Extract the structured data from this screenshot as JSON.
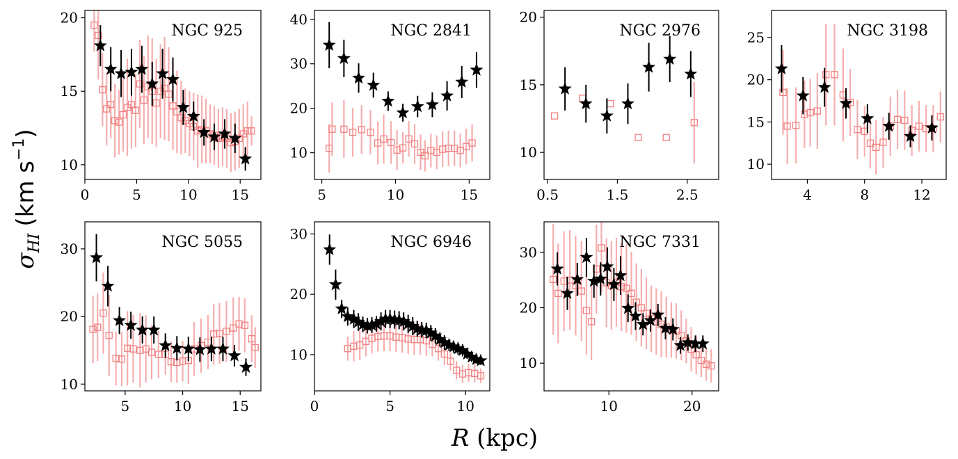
{
  "xlabel_var": "R",
  "xlabel_unit": " (kpc)",
  "ylabel_sym": "σ",
  "ylabel_sub": "HI",
  "ylabel_unit": "(km s",
  "ylabel_exp": "−1",
  "ylabel_close": ")",
  "colors": {
    "star": "#000000",
    "square": "#f08080",
    "square_err": "#f4a0a0"
  },
  "chart_data": [
    {
      "type": "scatter",
      "title": "NGC 925",
      "xlim": [
        0,
        17.0
      ],
      "ylim": [
        9,
        20.5
      ],
      "xticks": [
        0,
        5,
        10,
        15
      ],
      "yticks": [
        10,
        15,
        20
      ],
      "series": [
        {
          "name": "stars",
          "marker": "star",
          "x": [
            1.5,
            2.5,
            3.5,
            4.5,
            5.5,
            6.5,
            7.5,
            8.5,
            9.5,
            10.5,
            11.5,
            12.5,
            13.5,
            14.5,
            15.5
          ],
          "y": [
            18.1,
            16.5,
            16.2,
            16.3,
            16.5,
            15.5,
            16.2,
            15.8,
            13.9,
            13.3,
            12.2,
            11.9,
            12.1,
            11.8,
            10.4
          ],
          "err": [
            1.4,
            1.5,
            1.6,
            1.6,
            1.6,
            1.5,
            1.7,
            1.5,
            1.2,
            1.0,
            0.9,
            0.9,
            1.0,
            1.0,
            0.8
          ]
        },
        {
          "name": "squares",
          "marker": "square",
          "x": [
            0.9,
            1.3,
            1.7,
            2.1,
            2.5,
            2.9,
            3.3,
            3.7,
            4.1,
            4.5,
            4.9,
            5.3,
            5.7,
            6.1,
            6.5,
            6.9,
            7.3,
            7.7,
            8.1,
            8.5,
            8.9,
            9.3,
            9.7,
            10.1,
            10.5,
            10.9,
            11.3,
            11.7,
            12.1,
            12.5,
            12.9,
            13.3,
            13.7,
            14.1,
            14.5,
            14.9,
            15.3,
            15.7,
            16.1
          ],
          "y": [
            19.5,
            18.8,
            15.1,
            13.8,
            14.1,
            13.0,
            12.9,
            13.4,
            13.9,
            14.1,
            13.7,
            15.5,
            14.4,
            15.3,
            15.0,
            14.2,
            15.0,
            15.2,
            14.8,
            14.0,
            13.6,
            13.2,
            13.0,
            12.8,
            12.6,
            12.3,
            12.4,
            12.3,
            12.1,
            12.0,
            11.8,
            11.9,
            11.8,
            11.5,
            11.6,
            11.8,
            12.1,
            12.3,
            12.3
          ],
          "err": [
            1.8,
            3.0,
            2.5,
            2.5,
            2.3,
            2.5,
            2.2,
            2.5,
            3.3,
            3.0,
            2.5,
            3.0,
            3.0,
            3.5,
            3.6,
            3.0,
            3.2,
            3.5,
            3.2,
            3.0,
            2.8,
            2.5,
            2.2,
            2.2,
            2.3,
            2.5,
            2.3,
            2.2,
            2.0,
            2.0,
            2.0,
            2.0,
            2.0,
            2.0,
            2.0,
            2.0,
            2.0,
            2.0,
            1.0
          ]
        }
      ]
    },
    {
      "type": "scatter",
      "title": "NGC 2841",
      "xlim": [
        4.5,
        16.4
      ],
      "ylim": [
        4,
        42
      ],
      "xticks": [
        5,
        10,
        15
      ],
      "yticks": [
        10,
        20,
        30,
        40
      ],
      "series": [
        {
          "name": "stars",
          "marker": "star",
          "x": [
            5.5,
            6.5,
            7.5,
            8.5,
            9.5,
            10.5,
            11.5,
            12.5,
            13.5,
            14.5,
            15.5
          ],
          "y": [
            34.2,
            31.2,
            26.8,
            25.2,
            21.6,
            19.0,
            20.4,
            20.8,
            22.8,
            25.9,
            28.6
          ],
          "err": [
            5.2,
            4.2,
            3.3,
            2.8,
            2.2,
            2.0,
            2.4,
            2.8,
            3.3,
            3.6,
            4.0
          ]
        },
        {
          "name": "squares",
          "marker": "square",
          "x": [
            5.5,
            5.7,
            6.5,
            7.1,
            7.7,
            8.3,
            8.8,
            9.2,
            9.7,
            10.1,
            10.5,
            10.9,
            11.3,
            11.7,
            12.0,
            12.4,
            12.8,
            13.2,
            13.6,
            14.0,
            14.4,
            14.8,
            15.2
          ],
          "y": [
            11.0,
            15.3,
            15.3,
            14.6,
            15.2,
            14.6,
            12.2,
            13.1,
            12.3,
            10.6,
            11.1,
            13.1,
            12.0,
            10.1,
            9.3,
            10.5,
            10.1,
            10.8,
            11.0,
            11.0,
            10.5,
            11.4,
            12.2
          ],
          "err": [
            5.5,
            6.0,
            6.5,
            5.5,
            5.5,
            5.0,
            4.8,
            5.5,
            4.8,
            4.5,
            3.5,
            4.0,
            4.5,
            4.0,
            3.5,
            3.8,
            3.8,
            4.0,
            4.0,
            4.0,
            3.8,
            4.0,
            4.2
          ]
        }
      ]
    },
    {
      "type": "scatter",
      "title": "NGC 2976",
      "xlim": [
        0.45,
        2.95
      ],
      "ylim": [
        8,
        20.5
      ],
      "xticks": [
        0.5,
        1.5,
        2.5
      ],
      "yticks": [
        10,
        15,
        20
      ],
      "series": [
        {
          "name": "stars",
          "marker": "star",
          "x": [
            0.75,
            1.05,
            1.35,
            1.65,
            1.95,
            2.25,
            2.55
          ],
          "y": [
            14.7,
            13.6,
            12.7,
            13.6,
            16.3,
            16.9,
            15.8
          ],
          "err": [
            1.6,
            1.4,
            1.3,
            1.5,
            1.8,
            1.7,
            1.7
          ]
        },
        {
          "name": "squares",
          "marker": "square",
          "x": [
            0.6,
            1.0,
            1.4,
            1.8,
            2.2,
            2.6
          ],
          "y": [
            12.7,
            14.0,
            13.6,
            11.1,
            11.1,
            12.2
          ],
          "err": [
            0,
            0,
            0,
            0,
            0,
            3.0
          ]
        }
      ]
    },
    {
      "type": "scatter",
      "title": "NGC 3198",
      "xlim": [
        1.5,
        13.7
      ],
      "ylim": [
        8.2,
        28.2
      ],
      "xticks": [
        4,
        8,
        12
      ],
      "yticks": [
        10,
        15,
        20,
        25
      ],
      "series": [
        {
          "name": "stars",
          "marker": "star",
          "x": [
            2.2,
            3.7,
            5.2,
            6.7,
            8.2,
            9.7,
            11.2,
            12.7
          ],
          "y": [
            21.3,
            18.1,
            19.1,
            17.2,
            15.4,
            14.5,
            13.3,
            14.3
          ],
          "err": [
            2.8,
            2.2,
            2.3,
            1.8,
            1.7,
            1.6,
            1.3,
            1.5
          ]
        },
        {
          "name": "squares",
          "marker": "square",
          "x": [
            2.3,
            2.6,
            3.2,
            3.8,
            4.2,
            4.7,
            5.3,
            5.9,
            6.5,
            7.0,
            7.5,
            8.0,
            8.4,
            8.8,
            9.3,
            9.8,
            10.3,
            10.8,
            11.3,
            11.8,
            12.3,
            12.8,
            13.3
          ],
          "y": [
            18.5,
            14.5,
            14.6,
            15.9,
            16.1,
            16.3,
            20.6,
            20.6,
            18.2,
            17.3,
            14.1,
            13.9,
            12.5,
            12.0,
            12.6,
            14.5,
            15.3,
            15.2,
            14.0,
            14.5,
            14.2,
            14.2,
            15.6
          ],
          "err": [
            5.0,
            4.5,
            4.5,
            4.0,
            4.0,
            4.5,
            6.0,
            6.0,
            5.5,
            4.0,
            3.5,
            3.0,
            3.0,
            3.2,
            3.0,
            3.5,
            3.5,
            3.5,
            3.0,
            3.0,
            2.8,
            2.8,
            3.0
          ]
        }
      ]
    },
    {
      "type": "scatter",
      "title": "NGC 5055",
      "xlim": [
        1.5,
        16.8
      ],
      "ylim": [
        9,
        34
      ],
      "xticks": [
        5,
        10,
        15
      ],
      "yticks": [
        10,
        20,
        30
      ],
      "series": [
        {
          "name": "stars",
          "marker": "star",
          "x": [
            2.5,
            3.5,
            4.5,
            5.5,
            6.5,
            7.5,
            8.5,
            9.5,
            10.5,
            11.5,
            12.5,
            13.5,
            14.5,
            15.5
          ],
          "y": [
            28.7,
            24.5,
            19.4,
            18.7,
            18.0,
            18.0,
            15.7,
            15.3,
            15.2,
            15.1,
            15.2,
            15.2,
            14.2,
            12.5
          ],
          "err": [
            3.5,
            3.0,
            2.0,
            2.0,
            2.0,
            2.0,
            1.8,
            1.8,
            1.8,
            1.8,
            1.8,
            1.8,
            1.6,
            1.3
          ]
        },
        {
          "name": "squares",
          "marker": "square",
          "x": [
            2.2,
            2.6,
            3.1,
            3.6,
            4.2,
            4.7,
            5.2,
            5.7,
            6.3,
            6.8,
            7.3,
            7.9,
            8.5,
            9.0,
            9.5,
            10.0,
            10.5,
            11.0,
            11.6,
            12.2,
            12.7,
            13.2,
            13.8,
            14.4,
            14.9,
            15.4,
            16.0,
            16.3
          ],
          "y": [
            18.1,
            18.4,
            20.5,
            17.2,
            13.8,
            13.7,
            15.3,
            15.2,
            15.0,
            15.2,
            14.7,
            14.4,
            14.4,
            13.3,
            13.2,
            13.4,
            13.5,
            15.2,
            15.7,
            16.2,
            17.4,
            17.5,
            17.8,
            18.3,
            18.9,
            18.7,
            16.7,
            15.4
          ],
          "err": [
            5.0,
            5.0,
            6.0,
            6.0,
            4.0,
            4.0,
            5.5,
            5.0,
            5.5,
            5.0,
            4.0,
            3.5,
            3.0,
            3.0,
            3.0,
            3.0,
            3.5,
            4.0,
            4.0,
            4.0,
            4.5,
            4.5,
            4.5,
            4.5,
            4.0,
            4.0,
            3.5,
            3.0
          ]
        }
      ]
    },
    {
      "type": "scatter",
      "title": "NGC 6946",
      "xlim": [
        0,
        11.6
      ],
      "ylim": [
        4,
        32
      ],
      "xticks": [
        0,
        5,
        10
      ],
      "yticks": [
        10,
        20,
        30
      ],
      "series": [
        {
          "name": "stars",
          "marker": "star",
          "x": [
            1.0,
            1.4,
            1.8,
            2.2,
            2.6,
            2.9,
            3.2,
            3.5,
            3.8,
            4.1,
            4.4,
            4.7,
            5.0,
            5.3,
            5.6,
            5.9,
            6.2,
            6.5,
            6.8,
            7.1,
            7.4,
            7.7,
            8.0,
            8.3,
            8.6,
            8.9,
            9.2,
            9.5,
            9.8,
            10.1,
            10.4,
            10.7,
            11.0
          ],
          "y": [
            27.4,
            21.6,
            17.6,
            16.3,
            15.9,
            15.4,
            15.0,
            14.8,
            14.9,
            15.1,
            15.5,
            15.9,
            15.9,
            15.8,
            15.7,
            15.5,
            15.1,
            14.7,
            14.3,
            14.1,
            14.0,
            13.6,
            13.1,
            12.5,
            12.0,
            11.6,
            11.3,
            11.0,
            10.7,
            10.1,
            9.6,
            9.2,
            9.0
          ],
          "err": [
            2.5,
            2.5,
            1.5,
            1.5,
            1.5,
            1.5,
            1.3,
            1.3,
            1.3,
            1.3,
            1.5,
            1.5,
            1.5,
            1.5,
            1.5,
            1.5,
            1.5,
            1.5,
            1.3,
            1.3,
            1.3,
            1.3,
            1.3,
            1.2,
            1.2,
            1.0,
            1.0,
            1.0,
            1.0,
            0.8,
            0.8,
            0.7,
            0.7
          ]
        },
        {
          "name": "squares",
          "marker": "square",
          "x": [
            2.2,
            2.6,
            3.0,
            3.4,
            3.8,
            4.2,
            4.6,
            5.0,
            5.4,
            5.8,
            6.2,
            6.6,
            7.0,
            7.4,
            7.8,
            8.2,
            8.6,
            9.0,
            9.4,
            9.8,
            10.2,
            10.6,
            11.0
          ],
          "y": [
            11.0,
            11.4,
            11.6,
            12.2,
            12.7,
            13.0,
            13.1,
            13.1,
            12.9,
            12.8,
            12.6,
            12.5,
            12.5,
            12.3,
            11.7,
            11.0,
            10.1,
            8.9,
            7.4,
            6.8,
            7.0,
            6.9,
            6.5
          ],
          "err": [
            2.0,
            2.5,
            2.5,
            2.5,
            2.5,
            2.5,
            2.5,
            2.5,
            2.5,
            2.5,
            2.5,
            2.5,
            2.5,
            2.5,
            2.0,
            2.0,
            1.8,
            1.5,
            1.5,
            1.5,
            1.5,
            1.5,
            1.2
          ]
        }
      ]
    },
    {
      "type": "scatter",
      "title": "NGC 7331",
      "xlim": [
        2.2,
        23.2
      ],
      "ylim": [
        5,
        35.5
      ],
      "xticks": [
        10,
        20
      ],
      "yticks": [
        10,
        20,
        30
      ],
      "series": [
        {
          "name": "stars",
          "marker": "star",
          "x": [
            3.8,
            5.0,
            6.2,
            7.3,
            8.2,
            9.0,
            9.8,
            10.6,
            11.4,
            12.3,
            13.2,
            14.1,
            15.0,
            15.9,
            16.8,
            17.7,
            18.6,
            19.5,
            20.4,
            21.3
          ],
          "y": [
            27.0,
            22.6,
            25.1,
            29.1,
            24.8,
            25.2,
            27.4,
            24.2,
            25.8,
            19.9,
            18.5,
            17.0,
            17.7,
            18.7,
            16.3,
            16.1,
            13.2,
            13.7,
            13.5,
            13.5
          ],
          "err": [
            3.0,
            3.0,
            3.0,
            3.5,
            3.0,
            3.0,
            3.5,
            3.0,
            3.5,
            2.5,
            2.5,
            2.0,
            2.0,
            2.0,
            2.0,
            2.0,
            1.5,
            1.5,
            1.5,
            1.5
          ]
        },
        {
          "name": "squares",
          "marker": "square",
          "x": [
            3.3,
            3.9,
            4.6,
            5.3,
            6.0,
            6.7,
            7.3,
            7.9,
            8.5,
            9.1,
            9.7,
            10.3,
            10.9,
            11.5,
            12.1,
            12.7,
            13.3,
            13.9,
            14.5,
            15.1,
            15.7,
            16.3,
            16.9,
            17.5,
            18.1,
            18.7,
            19.3,
            19.9,
            20.5,
            21.1,
            21.7,
            22.3
          ],
          "y": [
            25.1,
            22.6,
            24.8,
            25.0,
            24.0,
            23.0,
            19.5,
            17.5,
            27.0,
            30.8,
            24.5,
            24.0,
            24.6,
            23.8,
            23.5,
            22.6,
            21.0,
            20.0,
            19.0,
            18.0,
            17.5,
            17.0,
            16.5,
            16.0,
            15.8,
            15.0,
            14.0,
            12.5,
            11.5,
            10.5,
            9.8,
            9.5
          ],
          "err": [
            10.0,
            9.0,
            9.0,
            9.0,
            9.0,
            9.0,
            8.0,
            7.0,
            8.0,
            8.0,
            8.0,
            8.0,
            8.0,
            8.0,
            8.0,
            7.5,
            7.0,
            7.0,
            6.5,
            6.0,
            6.0,
            6.0,
            5.5,
            5.0,
            5.0,
            4.5,
            4.0,
            4.0,
            3.5,
            3.0,
            3.0,
            3.0
          ]
        }
      ]
    }
  ]
}
